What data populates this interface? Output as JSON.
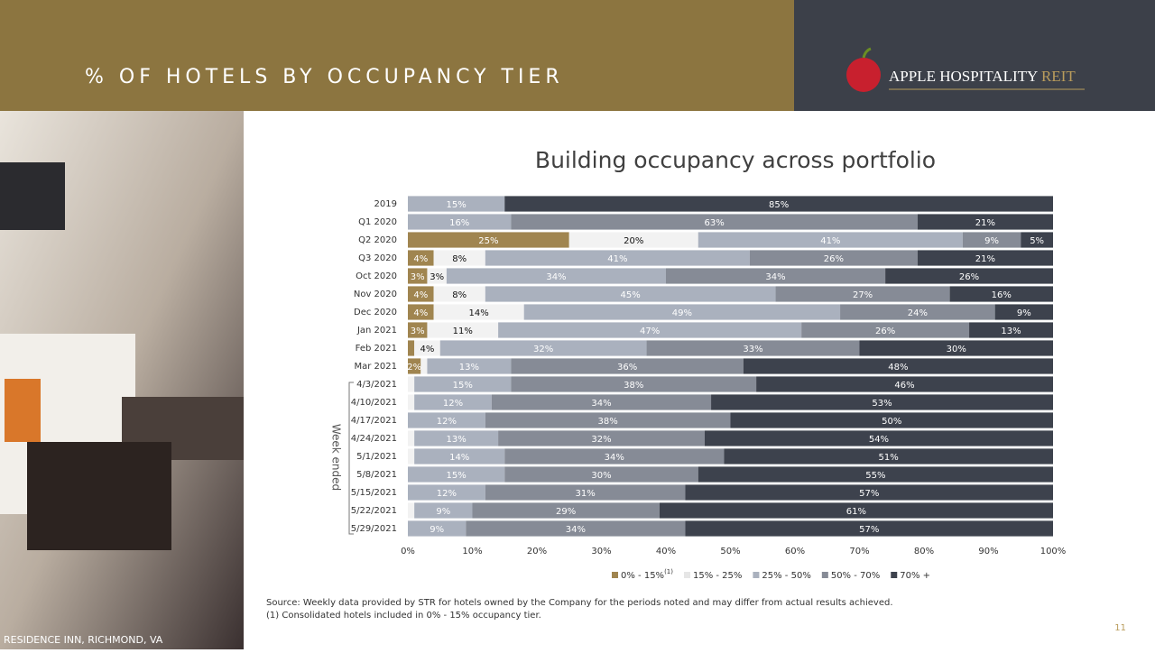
{
  "header": {
    "title": "% OF HOTELS BY OCCUPANCY TIER",
    "logo_main": "APPLE HOSPITALITY",
    "logo_accent": "REIT"
  },
  "photo_caption": "RESIDENCE INN, RICHMOND, VA",
  "page_number": "11",
  "source": "Source:  Weekly data provided by STR for hotels owned by the Company for the periods noted and may differ from actual results achieved.",
  "footnote": "(1)    Consolidated hotels included in 0% - 15% occupancy tier.",
  "chart_data": {
    "type": "stacked-barh",
    "title": "Building occupancy across portfolio",
    "group_label": "Week ended",
    "categories": [
      "2019",
      "Q1 2020",
      "Q2 2020",
      "Q3 2020",
      "Oct 2020",
      "Nov 2020",
      "Dec 2020",
      "Jan 2021",
      "Feb 2021",
      "Mar 2021",
      "4/3/2021",
      "4/10/2021",
      "4/17/2021",
      "4/24/2021",
      "5/1/2021",
      "5/8/2021",
      "5/15/2021",
      "5/22/2021",
      "5/29/2021"
    ],
    "xlim": [
      0,
      100
    ],
    "xticks": [
      {
        "value": 0,
        "label": "0%"
      },
      {
        "value": 10,
        "label": "10%"
      },
      {
        "value": 20,
        "label": "20%"
      },
      {
        "value": 30,
        "label": "30%"
      },
      {
        "value": 40,
        "label": "40%"
      },
      {
        "value": 50,
        "label": "50%"
      },
      {
        "value": 60,
        "label": "60%"
      },
      {
        "value": 70,
        "label": "70%"
      },
      {
        "value": 80,
        "label": "80%"
      },
      {
        "value": 90,
        "label": "90%"
      },
      {
        "value": 100,
        "label": "100%"
      }
    ],
    "legend_position": "bottom",
    "series": [
      {
        "name": "0% - 15%",
        "name_note": "(1)",
        "color": "#a08550",
        "values": [
          0,
          0,
          25,
          4,
          3,
          4,
          4,
          3,
          1,
          2,
          0,
          0,
          0,
          0,
          0,
          0,
          0,
          0,
          0
        ],
        "value_labels": [
          null,
          null,
          "25%",
          "4%",
          "3%",
          "4%",
          "4%",
          "3%",
          null,
          "2%",
          null,
          null,
          null,
          null,
          null,
          null,
          null,
          null,
          null
        ]
      },
      {
        "name": "15% - 25%",
        "color": "#f2f2f2",
        "values": [
          0,
          0,
          20,
          8,
          3,
          8,
          14,
          11,
          4,
          1,
          1,
          1,
          0,
          1,
          1,
          0,
          0,
          1,
          0
        ],
        "value_labels": [
          null,
          null,
          "20%",
          "8%",
          "3%",
          "8%",
          "14%",
          "11%",
          "4%",
          null,
          null,
          null,
          null,
          null,
          null,
          null,
          null,
          null,
          null
        ]
      },
      {
        "name": "25% - 50%",
        "color": "#aab1be",
        "values": [
          15,
          16,
          41,
          41,
          34,
          45,
          49,
          47,
          32,
          13,
          15,
          12,
          12,
          13,
          14,
          15,
          12,
          9,
          9
        ],
        "value_labels": [
          "15%",
          "16%",
          "41%",
          "41%",
          "34%",
          "45%",
          "49%",
          "47%",
          "32%",
          "13%",
          "15%",
          "12%",
          "12%",
          "13%",
          "14%",
          "15%",
          "12%",
          "9%",
          "9%"
        ]
      },
      {
        "name": "50% - 70%",
        "color": "#868b96",
        "values": [
          0,
          63,
          9,
          26,
          34,
          27,
          24,
          26,
          33,
          36,
          38,
          34,
          38,
          32,
          34,
          30,
          31,
          29,
          34
        ],
        "value_labels": [
          null,
          "63%",
          "9%",
          "26%",
          "34%",
          "27%",
          "24%",
          "26%",
          "33%",
          "36%",
          "38%",
          "34%",
          "38%",
          "32%",
          "34%",
          "30%",
          "31%",
          "29%",
          "34%"
        ]
      },
      {
        "name": "70% +",
        "color": "#3d424d",
        "values": [
          85,
          21,
          5,
          21,
          26,
          16,
          9,
          13,
          30,
          48,
          46,
          53,
          50,
          54,
          51,
          55,
          57,
          61,
          57
        ],
        "value_labels": [
          "85%",
          "21%",
          "5%",
          "21%",
          "26%",
          "16%",
          "9%",
          "13%",
          "30%",
          "48%",
          "46%",
          "53%",
          "50%",
          "54%",
          "51%",
          "55%",
          "57%",
          "61%",
          "57%"
        ]
      }
    ]
  }
}
